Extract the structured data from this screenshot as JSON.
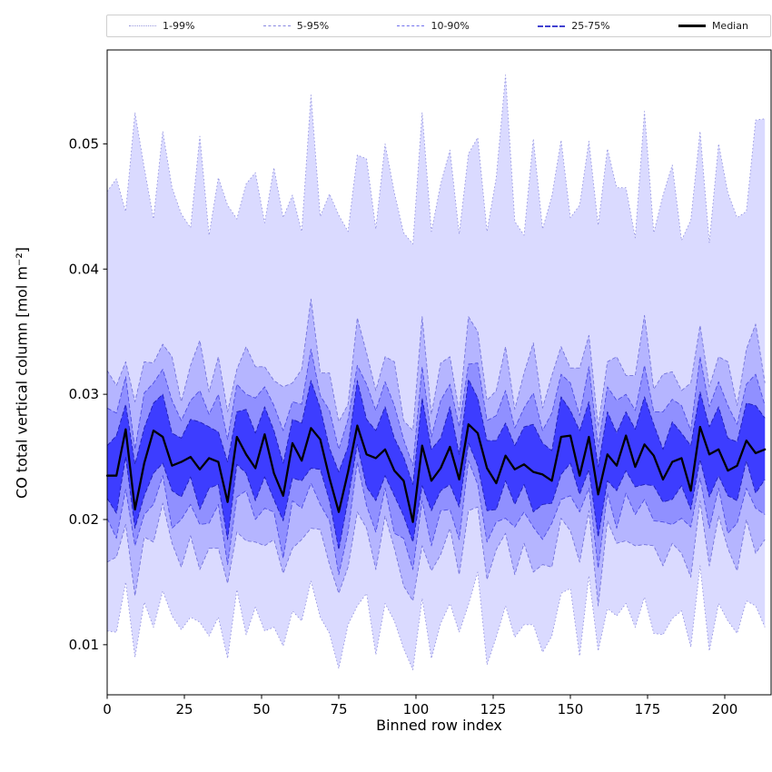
{
  "figure": {
    "background": "#ffffff"
  },
  "chart_data": {
    "type": "area",
    "title": "",
    "xlabel": "Binned row index",
    "ylabel": "CO total vertical column [mol m⁻²]",
    "xlim": [
      0,
      215
    ],
    "ylim": [
      0.006,
      0.0575
    ],
    "grid": false,
    "legend_position": "top",
    "xticks": [
      0,
      25,
      50,
      75,
      100,
      125,
      150,
      175,
      200
    ],
    "yticks": [
      0.01,
      0.02,
      0.03,
      0.04,
      0.05
    ],
    "ytick_labels": [
      "0.01",
      "0.02",
      "0.03",
      "0.04",
      "0.05"
    ],
    "x": [
      0,
      3,
      6,
      9,
      12,
      15,
      18,
      21,
      24,
      27,
      30,
      33,
      36,
      39,
      42,
      45,
      48,
      51,
      54,
      57,
      60,
      63,
      66,
      69,
      72,
      75,
      78,
      81,
      84,
      87,
      90,
      93,
      96,
      99,
      102,
      105,
      108,
      111,
      114,
      117,
      120,
      123,
      126,
      129,
      132,
      135,
      138,
      141,
      144,
      147,
      150,
      153,
      156,
      159,
      162,
      165,
      168,
      171,
      174,
      177,
      180,
      183,
      186,
      189,
      192,
      195,
      198,
      201,
      204,
      207,
      210,
      213
    ],
    "bands": [
      {
        "name": "1-99%",
        "fill": "#3333ff",
        "fill_opacity": 0.18,
        "edge_color": "#8888dd",
        "edge_opacity": 0.9,
        "dash": "1.5 2.5",
        "lower": [
          0.0111,
          0.011,
          0.015,
          0.009,
          0.0134,
          0.0114,
          0.0143,
          0.0123,
          0.0112,
          0.0122,
          0.0118,
          0.0107,
          0.0122,
          0.0089,
          0.0144,
          0.0108,
          0.013,
          0.0111,
          0.0114,
          0.0099,
          0.0127,
          0.0119,
          0.0151,
          0.0122,
          0.0109,
          0.0081,
          0.0116,
          0.0131,
          0.0141,
          0.0092,
          0.0133,
          0.0119,
          0.0097,
          0.008,
          0.0137,
          0.0089,
          0.0117,
          0.0133,
          0.011,
          0.0132,
          0.0158,
          0.0084,
          0.0106,
          0.0131,
          0.0106,
          0.0116,
          0.0116,
          0.0094,
          0.0107,
          0.0141,
          0.0145,
          0.0091,
          0.0155,
          0.0095,
          0.0129,
          0.0123,
          0.0133,
          0.0114,
          0.0138,
          0.0109,
          0.0108,
          0.0121,
          0.0127,
          0.0098,
          0.0163,
          0.0095,
          0.0133,
          0.0119,
          0.0109,
          0.0135,
          0.0131,
          0.0114
        ],
        "upper": [
          0.0462,
          0.0472,
          0.0446,
          0.0525,
          0.0481,
          0.044,
          0.051,
          0.0465,
          0.0444,
          0.0433,
          0.0506,
          0.0427,
          0.0473,
          0.0451,
          0.044,
          0.0468,
          0.0477,
          0.0437,
          0.0481,
          0.0441,
          0.0459,
          0.043,
          0.0539,
          0.0442,
          0.046,
          0.0443,
          0.043,
          0.0491,
          0.0488,
          0.0432,
          0.05,
          0.0461,
          0.0429,
          0.042,
          0.0525,
          0.043,
          0.0468,
          0.0495,
          0.0428,
          0.0492,
          0.0505,
          0.043,
          0.0473,
          0.0555,
          0.0438,
          0.0427,
          0.0504,
          0.0432,
          0.0458,
          0.0503,
          0.0441,
          0.0451,
          0.0502,
          0.0435,
          0.0496,
          0.0465,
          0.0465,
          0.0425,
          0.0526,
          0.0429,
          0.0459,
          0.0483,
          0.0423,
          0.0439,
          0.051,
          0.0421,
          0.05,
          0.0461,
          0.0441,
          0.0446,
          0.0519,
          0.052
        ]
      },
      {
        "name": "5-95%",
        "fill": "#3333ff",
        "fill_opacity": 0.22,
        "edge_color": "#6b6bd8",
        "edge_opacity": 0.9,
        "dash": "4 2.5",
        "lower": [
          0.0166,
          0.017,
          0.0196,
          0.0139,
          0.0186,
          0.0182,
          0.0213,
          0.0181,
          0.0162,
          0.0187,
          0.016,
          0.0177,
          0.0177,
          0.0149,
          0.019,
          0.0183,
          0.0182,
          0.0179,
          0.0184,
          0.0157,
          0.0177,
          0.0184,
          0.0193,
          0.0192,
          0.0164,
          0.0141,
          0.0162,
          0.0206,
          0.0193,
          0.016,
          0.0203,
          0.0177,
          0.0147,
          0.0135,
          0.0179,
          0.0159,
          0.0172,
          0.0193,
          0.0156,
          0.0207,
          0.021,
          0.0152,
          0.0176,
          0.0189,
          0.0156,
          0.0181,
          0.0158,
          0.0164,
          0.0162,
          0.0201,
          0.0191,
          0.0166,
          0.0207,
          0.0131,
          0.0199,
          0.0181,
          0.0183,
          0.0179,
          0.018,
          0.0179,
          0.0163,
          0.0181,
          0.0173,
          0.0154,
          0.0215,
          0.0163,
          0.0203,
          0.0177,
          0.0159,
          0.02,
          0.0173,
          0.0184
        ],
        "upper": [
          0.0319,
          0.0307,
          0.0326,
          0.0294,
          0.0326,
          0.0325,
          0.034,
          0.033,
          0.0294,
          0.0323,
          0.0343,
          0.0302,
          0.033,
          0.0286,
          0.032,
          0.0338,
          0.0322,
          0.0322,
          0.0311,
          0.0306,
          0.0309,
          0.032,
          0.0376,
          0.0317,
          0.0317,
          0.0278,
          0.0292,
          0.0361,
          0.0333,
          0.0303,
          0.033,
          0.0326,
          0.0279,
          0.0271,
          0.0362,
          0.0284,
          0.0325,
          0.033,
          0.0286,
          0.0362,
          0.035,
          0.0295,
          0.0303,
          0.0338,
          0.0288,
          0.0317,
          0.0341,
          0.0289,
          0.0315,
          0.0338,
          0.0321,
          0.0321,
          0.0347,
          0.0274,
          0.0326,
          0.033,
          0.0315,
          0.0315,
          0.0363,
          0.0304,
          0.0316,
          0.0318,
          0.0303,
          0.0309,
          0.0355,
          0.0306,
          0.033,
          0.0326,
          0.0291,
          0.0336,
          0.0356,
          0.0309
        ]
      },
      {
        "name": "10-90%",
        "fill": "#3333ff",
        "fill_opacity": 0.28,
        "edge_color": "#4646e0",
        "edge_opacity": 0.9,
        "dash": "5 2.5",
        "lower": [
          0.0201,
          0.0185,
          0.0224,
          0.0179,
          0.0204,
          0.0212,
          0.0235,
          0.0193,
          0.02,
          0.0212,
          0.0196,
          0.0197,
          0.0212,
          0.0164,
          0.0218,
          0.0223,
          0.02,
          0.0209,
          0.0206,
          0.0169,
          0.0215,
          0.0209,
          0.0229,
          0.0212,
          0.0199,
          0.0156,
          0.019,
          0.0246,
          0.0211,
          0.019,
          0.0225,
          0.0189,
          0.0185,
          0.016,
          0.0215,
          0.0179,
          0.0207,
          0.0208,
          0.0184,
          0.0247,
          0.0228,
          0.0182,
          0.0198,
          0.0201,
          0.0194,
          0.0206,
          0.0194,
          0.0184,
          0.0197,
          0.0216,
          0.0219,
          0.0206,
          0.0225,
          0.0161,
          0.0221,
          0.0193,
          0.0221,
          0.0204,
          0.0216,
          0.0199,
          0.0198,
          0.0196,
          0.0201,
          0.0194,
          0.0233,
          0.0193,
          0.0225,
          0.0189,
          0.0197,
          0.0225,
          0.0209,
          0.0204
        ],
        "upper": [
          0.0289,
          0.0285,
          0.0314,
          0.0256,
          0.0301,
          0.0309,
          0.032,
          0.0295,
          0.0279,
          0.0295,
          0.0303,
          0.0284,
          0.03,
          0.0264,
          0.0308,
          0.03,
          0.0297,
          0.0306,
          0.0291,
          0.0271,
          0.0294,
          0.0292,
          0.0336,
          0.0299,
          0.0287,
          0.0256,
          0.028,
          0.0323,
          0.0308,
          0.0287,
          0.031,
          0.0291,
          0.0264,
          0.0243,
          0.0322,
          0.0266,
          0.0295,
          0.0308,
          0.0274,
          0.0324,
          0.0325,
          0.0279,
          0.0283,
          0.0303,
          0.0273,
          0.0289,
          0.0301,
          0.0271,
          0.0285,
          0.0316,
          0.0309,
          0.0283,
          0.0322,
          0.0258,
          0.0306,
          0.0295,
          0.03,
          0.0287,
          0.0323,
          0.0286,
          0.0286,
          0.0296,
          0.0291,
          0.0271,
          0.033,
          0.029,
          0.031,
          0.0291,
          0.0276,
          0.0308,
          0.0316,
          0.0291
        ]
      },
      {
        "name": "25-75%",
        "fill": "#2222ff",
        "fill_opacity": 0.75,
        "edge_color": "#1b1bb4",
        "edge_opacity": 0.95,
        "dash": "5 2.5",
        "lower": [
          0.0217,
          0.0205,
          0.025,
          0.0193,
          0.0219,
          0.0237,
          0.0245,
          0.0223,
          0.0218,
          0.0234,
          0.0208,
          0.0225,
          0.0228,
          0.0184,
          0.0244,
          0.0237,
          0.0215,
          0.0234,
          0.0216,
          0.0199,
          0.0233,
          0.0231,
          0.0241,
          0.024,
          0.0215,
          0.0176,
          0.0216,
          0.026,
          0.0226,
          0.0215,
          0.0235,
          0.0219,
          0.0203,
          0.0182,
          0.0227,
          0.0207,
          0.0223,
          0.0228,
          0.021,
          0.0261,
          0.0243,
          0.0207,
          0.0208,
          0.0231,
          0.0212,
          0.0228,
          0.0206,
          0.0212,
          0.0213,
          0.0236,
          0.0245,
          0.022,
          0.024,
          0.0186,
          0.0231,
          0.0223,
          0.0239,
          0.0226,
          0.0228,
          0.0227,
          0.0214,
          0.0216,
          0.0227,
          0.0208,
          0.0248,
          0.0218,
          0.0235,
          0.0219,
          0.0215,
          0.0247,
          0.0221,
          0.0232
        ],
        "upper": [
          0.0259,
          0.0267,
          0.0292,
          0.0244,
          0.0273,
          0.0293,
          0.03,
          0.0269,
          0.0265,
          0.028,
          0.0278,
          0.0274,
          0.027,
          0.0246,
          0.0286,
          0.0288,
          0.0269,
          0.029,
          0.0271,
          0.0245,
          0.028,
          0.0277,
          0.0311,
          0.0289,
          0.0257,
          0.0238,
          0.0258,
          0.0311,
          0.028,
          0.0271,
          0.029,
          0.0265,
          0.025,
          0.0228,
          0.0297,
          0.0256,
          0.0265,
          0.029,
          0.0252,
          0.0312,
          0.0297,
          0.0263,
          0.0263,
          0.0277,
          0.0259,
          0.0274,
          0.0276,
          0.0261,
          0.0255,
          0.0298,
          0.0287,
          0.0271,
          0.0294,
          0.0242,
          0.0286,
          0.0269,
          0.0286,
          0.0272,
          0.0298,
          0.0276,
          0.0256,
          0.0278,
          0.0269,
          0.0259,
          0.0302,
          0.0274,
          0.029,
          0.0265,
          0.0262,
          0.0293,
          0.0291,
          0.0281
        ]
      }
    ],
    "median": {
      "name": "Median",
      "color": "#000000",
      "width": 2.3,
      "values": [
        0.0235,
        0.0235,
        0.0272,
        0.0208,
        0.0245,
        0.0271,
        0.0266,
        0.0243,
        0.0246,
        0.025,
        0.024,
        0.0249,
        0.0246,
        0.0214,
        0.0266,
        0.0252,
        0.0241,
        0.0268,
        0.0237,
        0.0219,
        0.0261,
        0.0247,
        0.0273,
        0.0264,
        0.0233,
        0.0206,
        0.0238,
        0.0275,
        0.0252,
        0.0249,
        0.0256,
        0.0239,
        0.0231,
        0.0198,
        0.0259,
        0.0231,
        0.0241,
        0.0258,
        0.0232,
        0.0276,
        0.0269,
        0.0241,
        0.0229,
        0.0251,
        0.024,
        0.0244,
        0.0238,
        0.0236,
        0.0231,
        0.0266,
        0.0267,
        0.0235,
        0.0266,
        0.022,
        0.0252,
        0.0243,
        0.0267,
        0.0242,
        0.026,
        0.0251,
        0.0232,
        0.0246,
        0.0249,
        0.0223,
        0.0274,
        0.0252,
        0.0256,
        0.0239,
        0.0243,
        0.0263,
        0.0253,
        0.0256
      ]
    }
  }
}
